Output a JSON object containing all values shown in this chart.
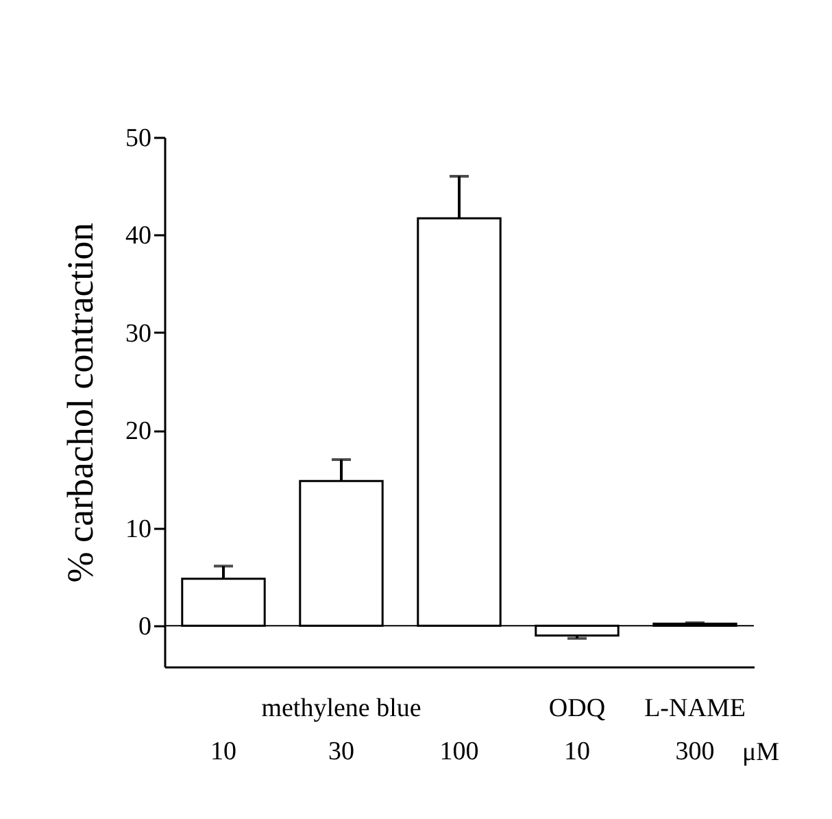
{
  "chart_data": {
    "type": "bar",
    "ylabel": "% carbachol contraction",
    "categories": [
      "10",
      "30",
      "100",
      "10",
      "300"
    ],
    "values": [
      4.8,
      14.8,
      41.7,
      -1,
      0.2
    ],
    "errors": [
      [
        4.8,
        6.1
      ],
      [
        14.8,
        17
      ],
      [
        41.7,
        46
      ],
      [
        -1.3,
        -1
      ],
      [
        0.2,
        0.3
      ]
    ],
    "color": "#ffffff",
    "ylim": [
      -4.2,
      50
    ],
    "yticks": [
      0,
      10,
      20,
      30,
      40,
      50
    ],
    "ref_lines": [
      {
        "axis": "y",
        "value": 0
      }
    ],
    "annotations": [
      "methylene blue",
      "ODQ",
      "L-NAME",
      "μM"
    ]
  }
}
